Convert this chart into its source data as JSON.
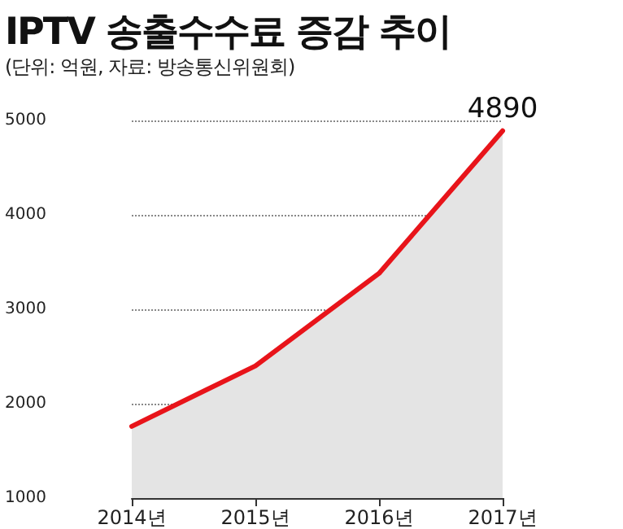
{
  "chart_data": {
    "type": "area",
    "title": "IPTV 송출수수료 증감 추이",
    "subtitle": "(단위: 억원, 자료: 방송통신위원회)",
    "categories": [
      "2014년",
      "2015년",
      "2016년",
      "2017년"
    ],
    "series": [
      {
        "color": "#e8141a",
        "values": [
          1760,
          2400,
          3380,
          4890
        ],
        "value_labels": [
          null,
          null,
          null,
          "4890"
        ]
      }
    ],
    "ylim": [
      1000,
      5000
    ],
    "yticks": [
      1000,
      2000,
      3000,
      4000,
      5000
    ],
    "grid": "y",
    "marker": "none",
    "line_style": "solid"
  }
}
